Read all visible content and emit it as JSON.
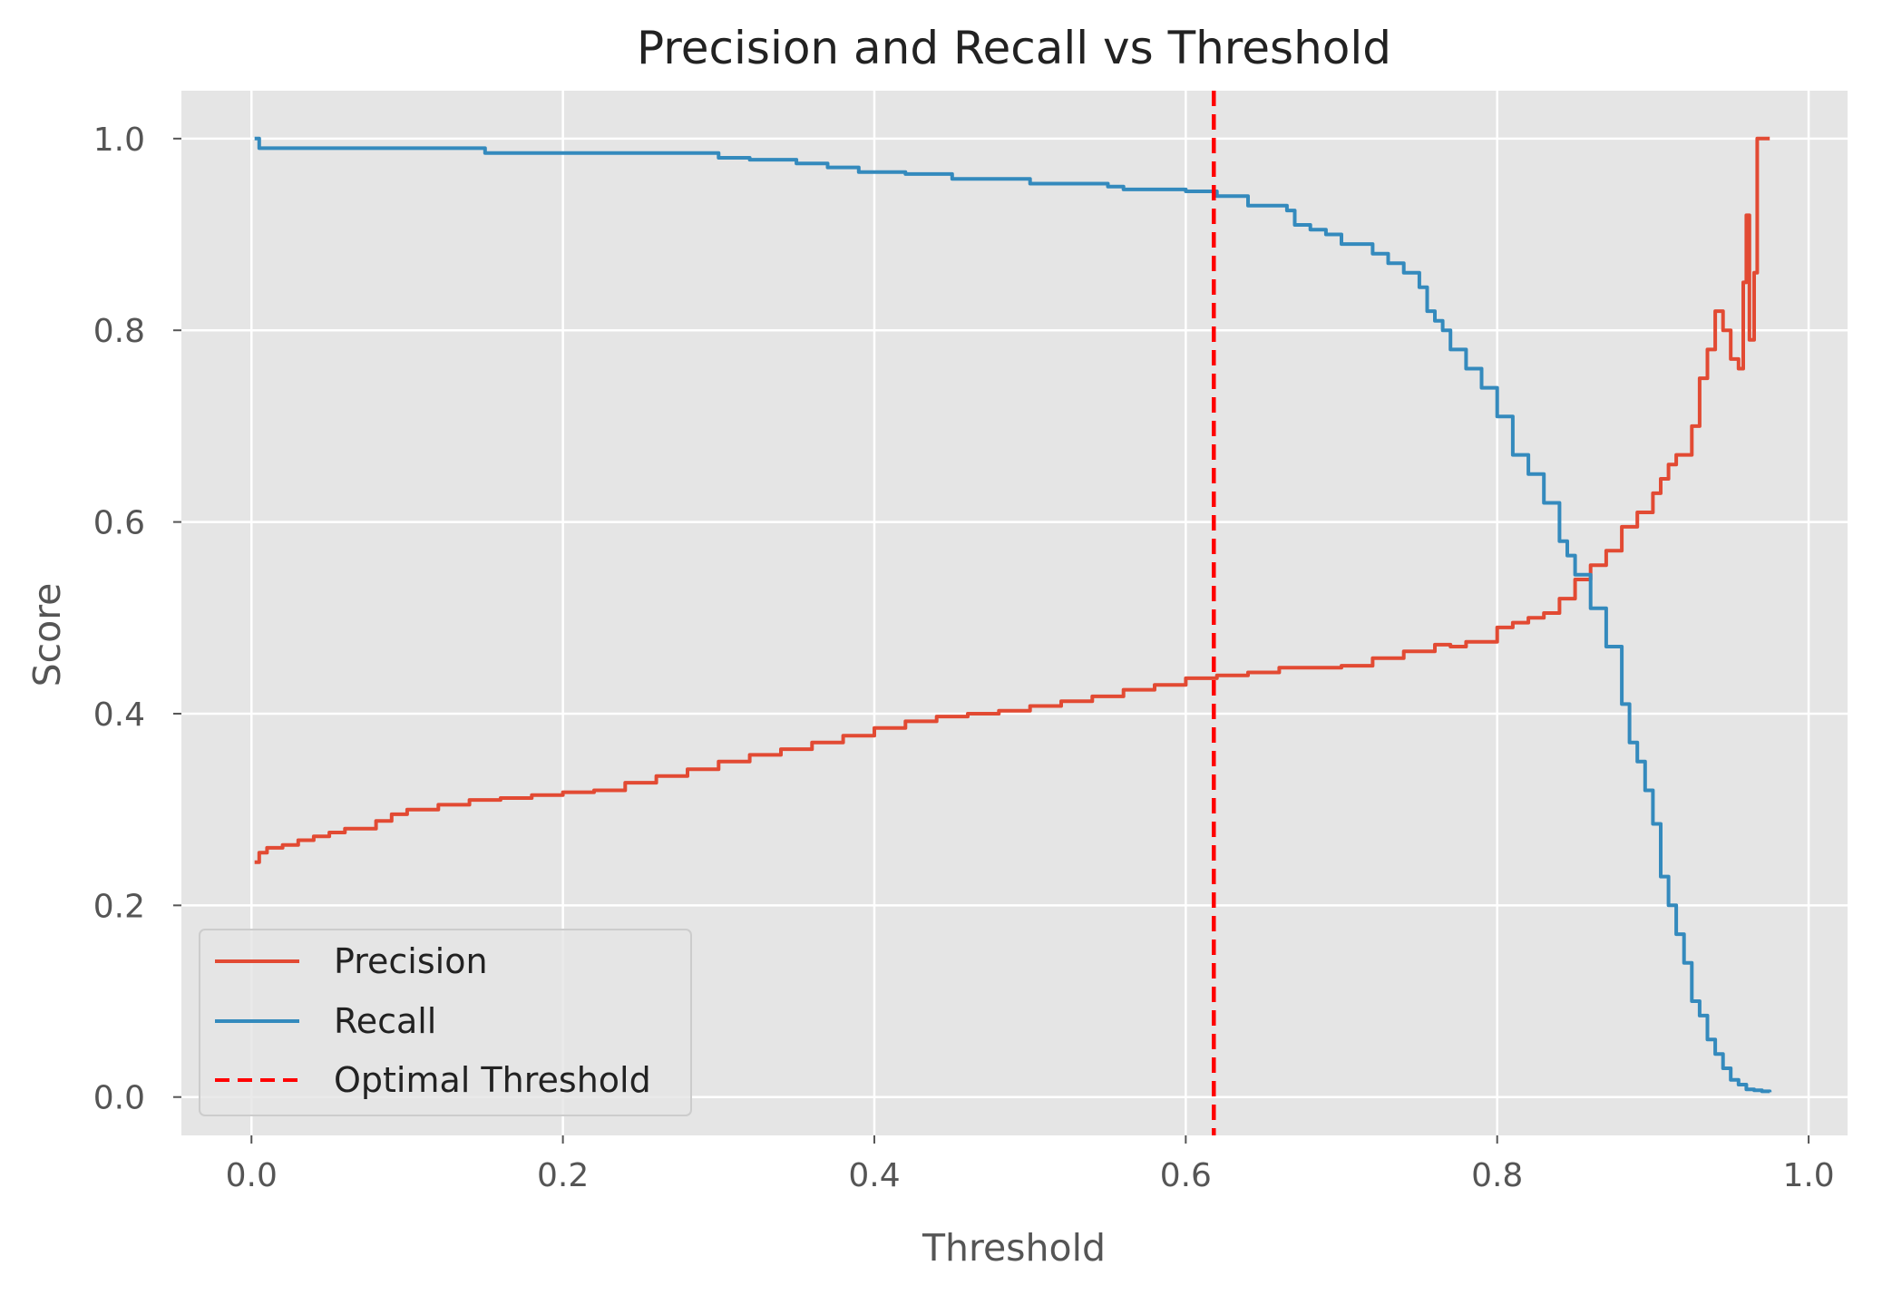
{
  "chart_data": {
    "type": "line",
    "title": "Precision and Recall vs Threshold",
    "xlabel": "Threshold",
    "ylabel": "Score",
    "xlim": [
      -0.045,
      1.025
    ],
    "ylim": [
      -0.04,
      1.05
    ],
    "xticks": [
      0.0,
      0.2,
      0.4,
      0.6,
      0.8,
      1.0
    ],
    "xtick_labels": [
      "0.0",
      "0.2",
      "0.4",
      "0.6",
      "0.8",
      "1.0"
    ],
    "yticks": [
      0.0,
      0.2,
      0.4,
      0.6,
      0.8,
      1.0
    ],
    "ytick_labels": [
      "0.0",
      "0.2",
      "0.4",
      "0.6",
      "0.8",
      "1.0"
    ],
    "grid": true,
    "legend_position": "lower-left",
    "background_color": "#e5e5e5",
    "series": [
      {
        "name": "Precision",
        "color": "#e24a33",
        "style": "solid",
        "x": [
          0.002,
          0.005,
          0.01,
          0.02,
          0.03,
          0.04,
          0.05,
          0.06,
          0.08,
          0.09,
          0.1,
          0.12,
          0.14,
          0.16,
          0.18,
          0.2,
          0.22,
          0.24,
          0.26,
          0.28,
          0.3,
          0.32,
          0.34,
          0.36,
          0.38,
          0.4,
          0.42,
          0.44,
          0.46,
          0.48,
          0.5,
          0.52,
          0.54,
          0.56,
          0.58,
          0.6,
          0.62,
          0.64,
          0.66,
          0.68,
          0.7,
          0.72,
          0.74,
          0.76,
          0.77,
          0.78,
          0.8,
          0.81,
          0.82,
          0.83,
          0.84,
          0.85,
          0.86,
          0.87,
          0.88,
          0.89,
          0.9,
          0.905,
          0.91,
          0.915,
          0.92,
          0.925,
          0.93,
          0.935,
          0.94,
          0.945,
          0.95,
          0.955,
          0.958,
          0.96,
          0.962,
          0.965,
          0.967,
          0.97,
          0.975
        ],
        "y": [
          0.245,
          0.255,
          0.26,
          0.263,
          0.268,
          0.272,
          0.276,
          0.28,
          0.288,
          0.295,
          0.3,
          0.305,
          0.31,
          0.312,
          0.315,
          0.318,
          0.32,
          0.328,
          0.335,
          0.342,
          0.35,
          0.357,
          0.363,
          0.37,
          0.377,
          0.385,
          0.392,
          0.397,
          0.4,
          0.403,
          0.408,
          0.413,
          0.418,
          0.425,
          0.43,
          0.437,
          0.44,
          0.443,
          0.448,
          0.448,
          0.45,
          0.458,
          0.465,
          0.472,
          0.47,
          0.475,
          0.49,
          0.495,
          0.5,
          0.505,
          0.52,
          0.54,
          0.555,
          0.57,
          0.595,
          0.61,
          0.63,
          0.645,
          0.66,
          0.67,
          0.67,
          0.7,
          0.75,
          0.78,
          0.82,
          0.8,
          0.77,
          0.76,
          0.85,
          0.92,
          0.79,
          0.86,
          1.0,
          1.0,
          1.0
        ]
      },
      {
        "name": "Recall",
        "color": "#348abd",
        "style": "solid",
        "x": [
          0.002,
          0.005,
          0.05,
          0.1,
          0.135,
          0.15,
          0.16,
          0.2,
          0.25,
          0.29,
          0.3,
          0.32,
          0.35,
          0.37,
          0.39,
          0.42,
          0.45,
          0.47,
          0.5,
          0.53,
          0.55,
          0.56,
          0.58,
          0.6,
          0.62,
          0.64,
          0.66,
          0.665,
          0.67,
          0.68,
          0.69,
          0.7,
          0.71,
          0.72,
          0.73,
          0.74,
          0.75,
          0.755,
          0.76,
          0.765,
          0.77,
          0.78,
          0.79,
          0.8,
          0.81,
          0.82,
          0.83,
          0.84,
          0.845,
          0.85,
          0.86,
          0.87,
          0.88,
          0.885,
          0.89,
          0.895,
          0.9,
          0.905,
          0.91,
          0.915,
          0.92,
          0.925,
          0.93,
          0.935,
          0.94,
          0.945,
          0.95,
          0.955,
          0.96,
          0.965,
          0.97,
          0.975
        ],
        "y": [
          1.0,
          0.99,
          0.99,
          0.99,
          0.99,
          0.985,
          0.985,
          0.985,
          0.985,
          0.985,
          0.98,
          0.978,
          0.974,
          0.97,
          0.965,
          0.963,
          0.958,
          0.958,
          0.953,
          0.953,
          0.95,
          0.947,
          0.947,
          0.945,
          0.94,
          0.93,
          0.93,
          0.925,
          0.91,
          0.905,
          0.9,
          0.89,
          0.89,
          0.88,
          0.87,
          0.86,
          0.845,
          0.82,
          0.81,
          0.8,
          0.78,
          0.76,
          0.74,
          0.71,
          0.67,
          0.65,
          0.62,
          0.58,
          0.565,
          0.545,
          0.51,
          0.47,
          0.41,
          0.37,
          0.35,
          0.32,
          0.285,
          0.23,
          0.2,
          0.17,
          0.14,
          0.1,
          0.085,
          0.06,
          0.045,
          0.03,
          0.018,
          0.013,
          0.008,
          0.007,
          0.006,
          0.005
        ]
      },
      {
        "name": "Optimal Threshold",
        "color": "#ff0000",
        "style": "dashed",
        "vline_x": 0.618
      }
    ]
  }
}
